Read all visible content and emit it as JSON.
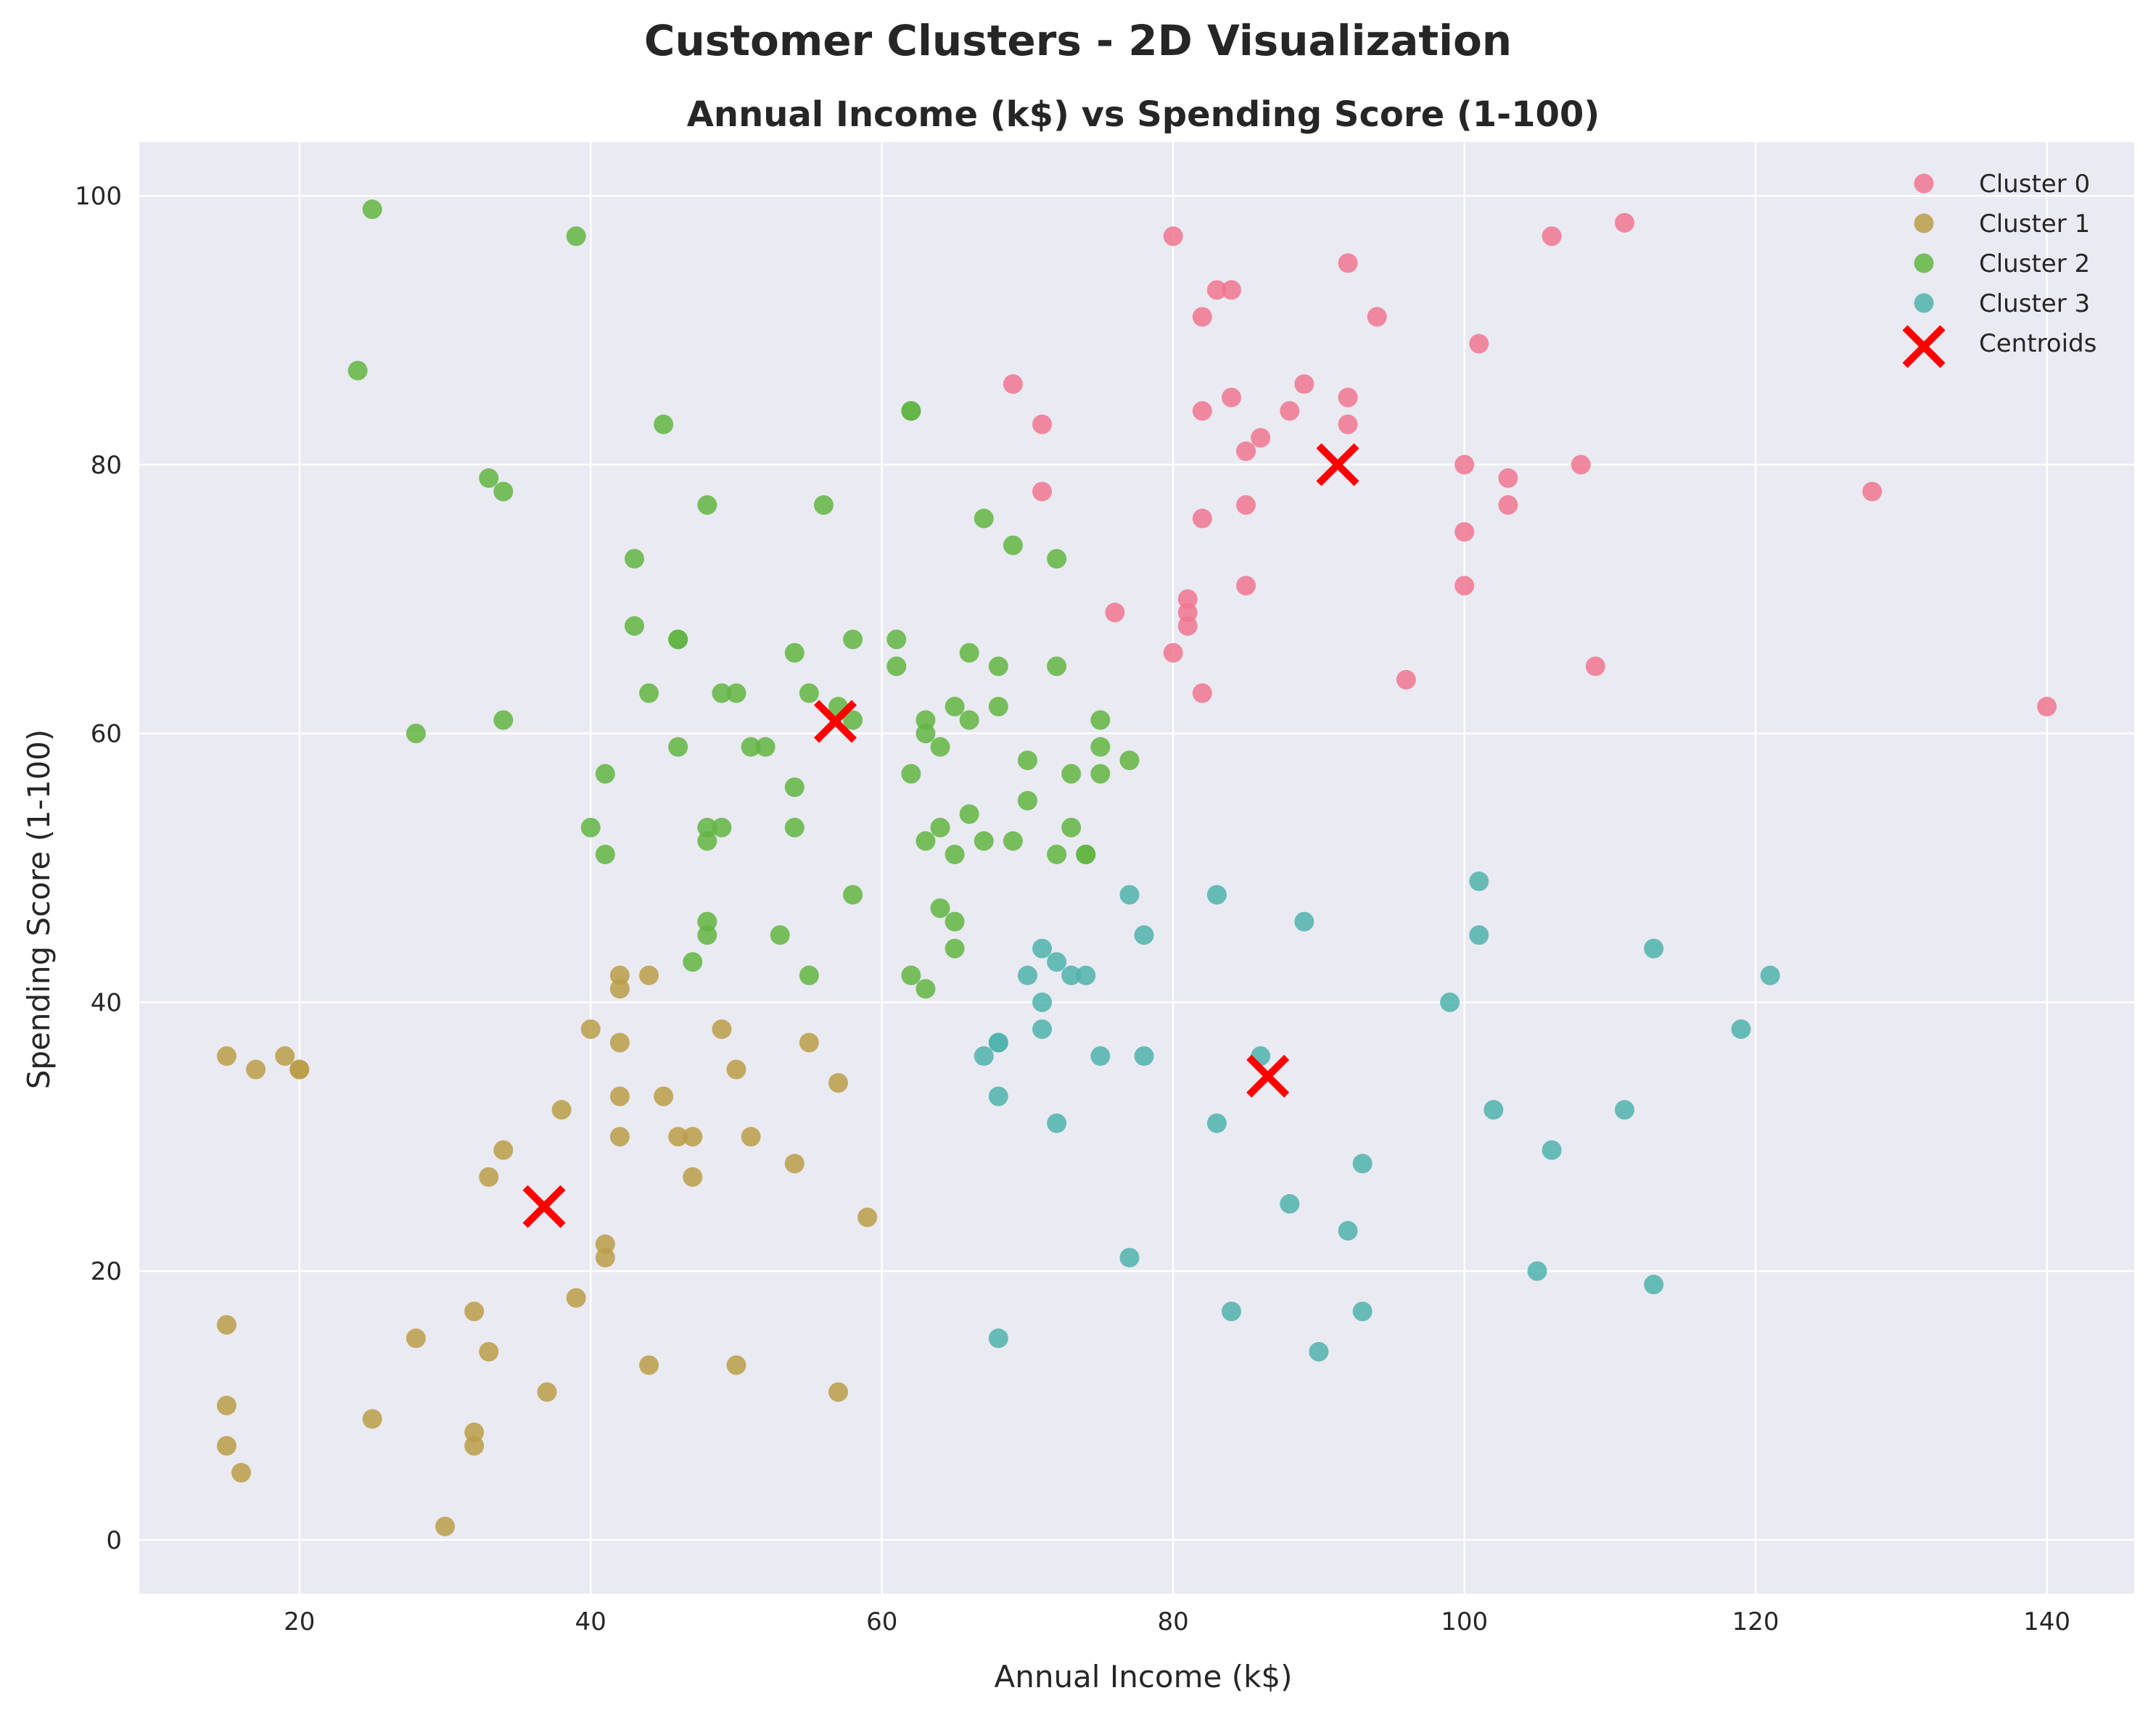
{
  "figure": {
    "suptitle": "Customer Clusters - 2D Visualization"
  },
  "chart_data": {
    "type": "scatter",
    "title": "Annual Income (k$) vs Spending Score (1-100)",
    "xlabel": "Annual Income (k$)",
    "ylabel": "Spending Score (1-100)",
    "xlim": [
      9,
      146
    ],
    "ylim": [
      -4,
      104
    ],
    "xticks": [
      20,
      40,
      60,
      80,
      100,
      120,
      140
    ],
    "yticks": [
      0,
      20,
      40,
      60,
      80,
      100
    ],
    "grid": true,
    "legend_position": "top-right",
    "background_color": "#eaeaf2",
    "series": [
      {
        "name": "Cluster 0",
        "color": "#f0778f",
        "marker": "circle",
        "points": [
          [
            80,
            97
          ],
          [
            111,
            98
          ],
          [
            106,
            97
          ],
          [
            83,
            93
          ],
          [
            84,
            93
          ],
          [
            92,
            95
          ],
          [
            94,
            91
          ],
          [
            101,
            89
          ],
          [
            82,
            91
          ],
          [
            69,
            86
          ],
          [
            89,
            86
          ],
          [
            82,
            84
          ],
          [
            84,
            85
          ],
          [
            88,
            84
          ],
          [
            92,
            85
          ],
          [
            92,
            83
          ],
          [
            71,
            83
          ],
          [
            86,
            82
          ],
          [
            85,
            81
          ],
          [
            100,
            80
          ],
          [
            108,
            80
          ],
          [
            103,
            79
          ],
          [
            71,
            78
          ],
          [
            128,
            78
          ],
          [
            85,
            77
          ],
          [
            103,
            77
          ],
          [
            82,
            76
          ],
          [
            100,
            75
          ],
          [
            85,
            71
          ],
          [
            100,
            71
          ],
          [
            81,
            70
          ],
          [
            76,
            69
          ],
          [
            81,
            69
          ],
          [
            81,
            68
          ],
          [
            80,
            66
          ],
          [
            109,
            65
          ],
          [
            96,
            64
          ],
          [
            82,
            63
          ],
          [
            140,
            62
          ]
        ]
      },
      {
        "name": "Cluster 1",
        "color": "#bb9e48",
        "marker": "circle",
        "points": [
          [
            15,
            36
          ],
          [
            17,
            35
          ],
          [
            19,
            36
          ],
          [
            20,
            35
          ],
          [
            20,
            35
          ],
          [
            15,
            16
          ],
          [
            15,
            10
          ],
          [
            15,
            7
          ],
          [
            16,
            5
          ],
          [
            25,
            9
          ],
          [
            28,
            15
          ],
          [
            30,
            1
          ],
          [
            32,
            17
          ],
          [
            32,
            8
          ],
          [
            32,
            7
          ],
          [
            33,
            27
          ],
          [
            33,
            14
          ],
          [
            34,
            29
          ],
          [
            37,
            11
          ],
          [
            38,
            32
          ],
          [
            39,
            18
          ],
          [
            40,
            38
          ],
          [
            41,
            22
          ],
          [
            41,
            21
          ],
          [
            42,
            42
          ],
          [
            42,
            41
          ],
          [
            42,
            37
          ],
          [
            42,
            33
          ],
          [
            42,
            30
          ],
          [
            44,
            42
          ],
          [
            44,
            13
          ],
          [
            45,
            33
          ],
          [
            46,
            30
          ],
          [
            47,
            30
          ],
          [
            47,
            27
          ],
          [
            49,
            38
          ],
          [
            50,
            35
          ],
          [
            50,
            13
          ],
          [
            51,
            30
          ],
          [
            54,
            28
          ],
          [
            55,
            37
          ],
          [
            57,
            34
          ],
          [
            57,
            11
          ],
          [
            59,
            24
          ]
        ]
      },
      {
        "name": "Cluster 2",
        "color": "#62b542",
        "marker": "circle",
        "points": [
          [
            25,
            99
          ],
          [
            39,
            97
          ],
          [
            24,
            87
          ],
          [
            45,
            83
          ],
          [
            62,
            84
          ],
          [
            62,
            84
          ],
          [
            33,
            79
          ],
          [
            34,
            78
          ],
          [
            48,
            77
          ],
          [
            56,
            77
          ],
          [
            67,
            76
          ],
          [
            69,
            74
          ],
          [
            43,
            73
          ],
          [
            72,
            73
          ],
          [
            43,
            68
          ],
          [
            46,
            67
          ],
          [
            46,
            67
          ],
          [
            58,
            67
          ],
          [
            61,
            67
          ],
          [
            54,
            66
          ],
          [
            66,
            66
          ],
          [
            61,
            65
          ],
          [
            68,
            65
          ],
          [
            72,
            65
          ],
          [
            44,
            63
          ],
          [
            49,
            63
          ],
          [
            50,
            63
          ],
          [
            55,
            63
          ],
          [
            57,
            62
          ],
          [
            65,
            62
          ],
          [
            68,
            62
          ],
          [
            28,
            60
          ],
          [
            34,
            61
          ],
          [
            58,
            61
          ],
          [
            63,
            61
          ],
          [
            66,
            61
          ],
          [
            75,
            61
          ],
          [
            63,
            60
          ],
          [
            46,
            59
          ],
          [
            51,
            59
          ],
          [
            52,
            59
          ],
          [
            64,
            59
          ],
          [
            75,
            59
          ],
          [
            70,
            58
          ],
          [
            77,
            58
          ],
          [
            41,
            57
          ],
          [
            62,
            57
          ],
          [
            73,
            57
          ],
          [
            75,
            57
          ],
          [
            54,
            56
          ],
          [
            70,
            55
          ],
          [
            66,
            54
          ],
          [
            40,
            53
          ],
          [
            48,
            53
          ],
          [
            49,
            53
          ],
          [
            54,
            53
          ],
          [
            64,
            53
          ],
          [
            73,
            53
          ],
          [
            41,
            51
          ],
          [
            48,
            52
          ],
          [
            63,
            52
          ],
          [
            67,
            52
          ],
          [
            69,
            52
          ],
          [
            65,
            51
          ],
          [
            72,
            51
          ],
          [
            74,
            51
          ],
          [
            74,
            51
          ],
          [
            58,
            48
          ],
          [
            64,
            47
          ],
          [
            48,
            46
          ],
          [
            65,
            46
          ],
          [
            48,
            45
          ],
          [
            53,
            45
          ],
          [
            65,
            44
          ],
          [
            47,
            43
          ],
          [
            55,
            42
          ],
          [
            62,
            42
          ],
          [
            63,
            41
          ]
        ]
      },
      {
        "name": "Cluster 3",
        "color": "#4fb3ad",
        "marker": "circle",
        "points": [
          [
            101,
            49
          ],
          [
            77,
            48
          ],
          [
            83,
            48
          ],
          [
            89,
            46
          ],
          [
            78,
            45
          ],
          [
            101,
            45
          ],
          [
            71,
            44
          ],
          [
            113,
            44
          ],
          [
            70,
            42
          ],
          [
            73,
            42
          ],
          [
            74,
            42
          ],
          [
            121,
            42
          ],
          [
            72,
            43
          ],
          [
            71,
            40
          ],
          [
            99,
            40
          ],
          [
            71,
            38
          ],
          [
            119,
            38
          ],
          [
            68,
            37
          ],
          [
            68,
            37
          ],
          [
            67,
            36
          ],
          [
            75,
            36
          ],
          [
            78,
            36
          ],
          [
            86,
            36
          ],
          [
            68,
            33
          ],
          [
            102,
            32
          ],
          [
            111,
            32
          ],
          [
            72,
            31
          ],
          [
            83,
            31
          ],
          [
            106,
            29
          ],
          [
            93,
            28
          ],
          [
            88,
            25
          ],
          [
            92,
            23
          ],
          [
            77,
            21
          ],
          [
            105,
            20
          ],
          [
            113,
            19
          ],
          [
            84,
            17
          ],
          [
            93,
            17
          ],
          [
            68,
            15
          ],
          [
            90,
            14
          ]
        ]
      },
      {
        "name": "Centroids",
        "color": "#ff0000",
        "marker": "x",
        "points": [
          [
            91.3,
            80.0
          ],
          [
            36.8,
            24.8
          ],
          [
            56.8,
            60.9
          ],
          [
            86.5,
            34.5
          ]
        ]
      }
    ]
  }
}
